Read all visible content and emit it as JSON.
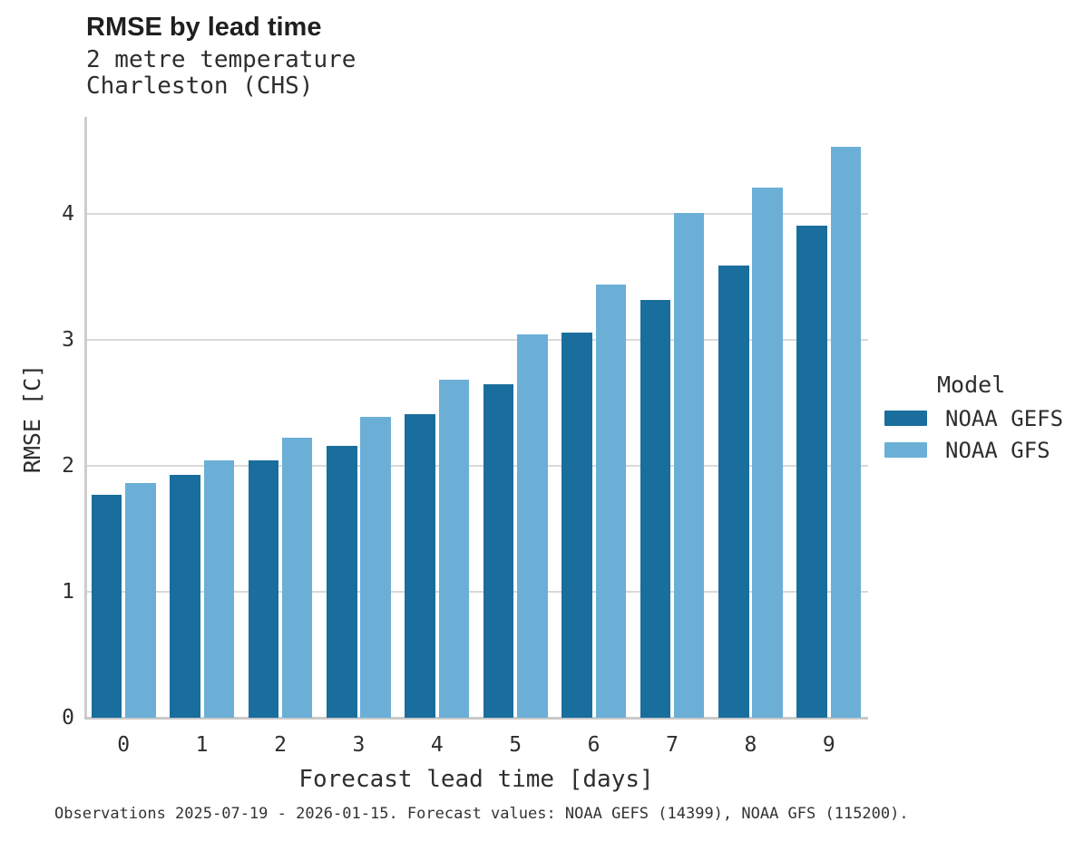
{
  "header": {
    "title": "RMSE by lead time",
    "subtitle1": "2 metre temperature",
    "subtitle2": "Charleston (CHS)"
  },
  "caption": {
    "text": "Observations 2025-07-19 - 2026-01-15. Forecast values: NOAA GEFS (14399), NOAA GFS (115200)."
  },
  "legend": {
    "title": "Model"
  },
  "colors": {
    "gefs": "#1A6E9D",
    "gfs": "#6BAFD7",
    "grid": "#D9D9D9",
    "axis": "#C9C9C9",
    "text": "#2E2E2E"
  },
  "chart_data": {
    "type": "bar",
    "title": "RMSE by lead time",
    "subtitle": [
      "2 metre temperature",
      "Charleston (CHS)"
    ],
    "categories": [
      "0",
      "1",
      "2",
      "3",
      "4",
      "5",
      "6",
      "7",
      "8",
      "9"
    ],
    "series": [
      {
        "name": "NOAA GEFS",
        "color": "#1A6E9D",
        "values": [
          1.77,
          1.93,
          2.04,
          2.16,
          2.41,
          2.65,
          3.06,
          3.32,
          3.59,
          3.91
        ]
      },
      {
        "name": "NOAA GFS",
        "color": "#6BAFD7",
        "values": [
          1.86,
          2.04,
          2.22,
          2.39,
          2.68,
          3.04,
          3.44,
          4.01,
          4.21,
          4.53
        ]
      }
    ],
    "xlabel": "Forecast lead time [days]",
    "ylabel": "RMSE [C]",
    "ylim": [
      0,
      4.77
    ],
    "yticks": [
      0,
      1,
      2,
      3,
      4
    ],
    "grid": true,
    "legend_title": "Model",
    "legend_position": "right"
  }
}
